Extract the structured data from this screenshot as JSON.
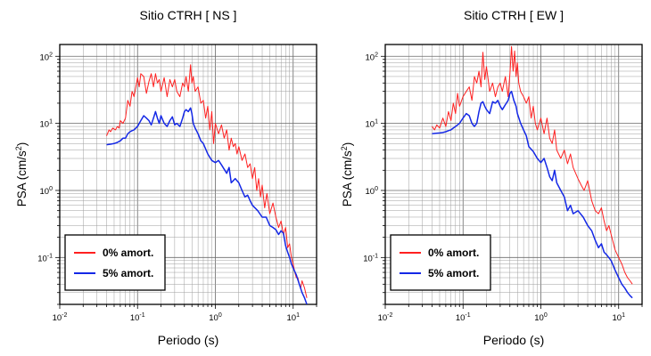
{
  "chart_data": [
    {
      "type": "line",
      "title": "Sitio CTRH [ NS ]",
      "xlabel": "Periodo (s)",
      "ylabel": "PSA (cm/s",
      "ylabel_sup": "2",
      "xscale": "log",
      "yscale": "log",
      "xlim": [
        0.01,
        20
      ],
      "ylim": [
        0.02,
        150
      ],
      "grid": true,
      "legend_position": "bottom-left",
      "x_ticks": [
        {
          "base": "10",
          "exp": "-2"
        },
        {
          "base": "10",
          "exp": "-1"
        },
        {
          "base": "10",
          "exp": "0"
        },
        {
          "base": "10",
          "exp": "1"
        }
      ],
      "y_ticks": [
        {
          "base": "10",
          "exp": "-1"
        },
        {
          "base": "10",
          "exp": "0"
        },
        {
          "base": "10",
          "exp": "1"
        },
        {
          "base": "10",
          "exp": "2"
        }
      ],
      "series": [
        {
          "name": "0% amort.",
          "color": "#ff2020",
          "x": [
            0.04,
            0.043,
            0.045,
            0.048,
            0.052,
            0.055,
            0.058,
            0.06,
            0.065,
            0.07,
            0.075,
            0.08,
            0.085,
            0.09,
            0.1,
            0.105,
            0.11,
            0.12,
            0.13,
            0.14,
            0.15,
            0.16,
            0.17,
            0.18,
            0.19,
            0.2,
            0.22,
            0.24,
            0.26,
            0.28,
            0.3,
            0.32,
            0.35,
            0.38,
            0.4,
            0.42,
            0.45,
            0.48,
            0.5,
            0.52,
            0.55,
            0.6,
            0.65,
            0.7,
            0.75,
            0.8,
            0.85,
            0.9,
            0.95,
            1.0,
            1.1,
            1.2,
            1.3,
            1.4,
            1.5,
            1.6,
            1.7,
            1.8,
            1.9,
            2.0,
            2.2,
            2.4,
            2.6,
            2.8,
            3.0,
            3.2,
            3.4,
            3.6,
            3.8,
            4.0,
            4.3,
            4.6,
            5.0,
            5.5,
            6.0,
            6.5,
            7.0,
            7.5,
            8.0,
            8.5,
            9.0,
            9.5,
            10.0,
            10.5,
            11.0,
            11.5,
            12.0,
            12.5,
            13.0,
            14.0,
            15.0
          ],
          "values": [
            6.5,
            8,
            7.5,
            8.5,
            8,
            9,
            8.5,
            11,
            10,
            12,
            22,
            18,
            30,
            25,
            48,
            35,
            55,
            50,
            28,
            42,
            55,
            35,
            55,
            40,
            45,
            30,
            48,
            25,
            45,
            35,
            45,
            30,
            25,
            40,
            35,
            50,
            30,
            75,
            40,
            50,
            30,
            35,
            20,
            22,
            12,
            18,
            8,
            15,
            5,
            10,
            7,
            9.5,
            6,
            8,
            4,
            6,
            4.5,
            5,
            3.5,
            4.5,
            2.8,
            3.5,
            2.2,
            2.5,
            1.5,
            2.2,
            1.0,
            1.5,
            0.8,
            1.2,
            0.55,
            0.9,
            0.45,
            0.65,
            0.4,
            0.28,
            0.35,
            0.22,
            0.28,
            0.14,
            0.16,
            0.1,
            0.08,
            0.06,
            0.05,
            0.05,
            0.04,
            0.035,
            0.045,
            0.035,
            0.025
          ]
        },
        {
          "name": "5% amort.",
          "color": "#1428e6",
          "x": [
            0.04,
            0.045,
            0.05,
            0.055,
            0.06,
            0.065,
            0.07,
            0.075,
            0.08,
            0.085,
            0.09,
            0.095,
            0.1,
            0.11,
            0.12,
            0.13,
            0.14,
            0.15,
            0.16,
            0.17,
            0.18,
            0.19,
            0.2,
            0.22,
            0.24,
            0.26,
            0.28,
            0.3,
            0.32,
            0.35,
            0.38,
            0.4,
            0.42,
            0.45,
            0.48,
            0.5,
            0.52,
            0.55,
            0.6,
            0.65,
            0.7,
            0.8,
            0.9,
            1.0,
            1.1,
            1.2,
            1.4,
            1.5,
            1.6,
            1.8,
            2.0,
            2.2,
            2.4,
            2.6,
            2.8,
            3.0,
            3.5,
            4.0,
            4.5,
            5.0,
            5.5,
            6.0,
            6.5,
            7.0,
            7.5,
            8.0,
            8.5,
            9.0,
            9.5,
            10.0,
            11.0,
            12.0,
            13.0,
            14.0,
            15.0
          ],
          "values": [
            4.8,
            4.9,
            5.0,
            5.2,
            5.5,
            6.0,
            6.0,
            7.0,
            7.5,
            7.8,
            8.0,
            8.5,
            9.0,
            11,
            13,
            12,
            11,
            9.5,
            12,
            15,
            12,
            10,
            13,
            10,
            9,
            11,
            12.5,
            9.5,
            10,
            9,
            12,
            15,
            16,
            15,
            17,
            14,
            10,
            8.5,
            7,
            5.5,
            5.0,
            3.5,
            2.8,
            2.6,
            2.8,
            2.4,
            1.8,
            2.2,
            1.3,
            1.5,
            1.3,
            1.0,
            0.8,
            0.85,
            0.7,
            0.6,
            0.5,
            0.4,
            0.4,
            0.3,
            0.28,
            0.26,
            0.22,
            0.25,
            0.23,
            0.15,
            0.12,
            0.1,
            0.08,
            0.07,
            0.055,
            0.04,
            0.03,
            0.025,
            0.02
          ]
        }
      ]
    },
    {
      "type": "line",
      "title": "Sitio CTRH [ EW ]",
      "xlabel": "Periodo (s)",
      "ylabel": "PSA (cm/s",
      "ylabel_sup": "2",
      "xscale": "log",
      "yscale": "log",
      "xlim": [
        0.01,
        20
      ],
      "ylim": [
        0.02,
        150
      ],
      "grid": true,
      "legend_position": "bottom-left",
      "x_ticks": [
        {
          "base": "10",
          "exp": "-2"
        },
        {
          "base": "10",
          "exp": "-1"
        },
        {
          "base": "10",
          "exp": "0"
        },
        {
          "base": "10",
          "exp": "1"
        }
      ],
      "y_ticks": [
        {
          "base": "10",
          "exp": "-1"
        },
        {
          "base": "10",
          "exp": "0"
        },
        {
          "base": "10",
          "exp": "1"
        },
        {
          "base": "10",
          "exp": "2"
        }
      ],
      "series": [
        {
          "name": "0% amort.",
          "color": "#ff2020",
          "x": [
            0.04,
            0.043,
            0.046,
            0.05,
            0.055,
            0.06,
            0.065,
            0.07,
            0.075,
            0.08,
            0.085,
            0.09,
            0.1,
            0.11,
            0.12,
            0.13,
            0.14,
            0.15,
            0.16,
            0.17,
            0.18,
            0.19,
            0.2,
            0.22,
            0.24,
            0.26,
            0.28,
            0.3,
            0.32,
            0.35,
            0.38,
            0.4,
            0.42,
            0.44,
            0.46,
            0.48,
            0.5,
            0.52,
            0.55,
            0.6,
            0.65,
            0.7,
            0.75,
            0.8,
            0.85,
            0.9,
            1.0,
            1.1,
            1.2,
            1.3,
            1.4,
            1.5,
            1.6,
            1.8,
            2.0,
            2.2,
            2.4,
            2.6,
            2.8,
            3.0,
            3.3,
            3.6,
            4.0,
            4.5,
            5.0,
            5.5,
            6.0,
            6.5,
            7.0,
            7.5,
            8.0,
            9.0,
            10.0,
            11.0,
            12.0,
            13.0,
            14.0,
            15.0
          ],
          "values": [
            9,
            8,
            9.5,
            8.5,
            12,
            9,
            15,
            11,
            20,
            14,
            28,
            18,
            25,
            30,
            35,
            22,
            50,
            40,
            60,
            35,
            115,
            45,
            70,
            30,
            40,
            25,
            35,
            40,
            30,
            50,
            25,
            55,
            140,
            60,
            120,
            50,
            80,
            40,
            30,
            25,
            20,
            25,
            12,
            18,
            10,
            8,
            12,
            7,
            12,
            6,
            5,
            8,
            4,
            3,
            4,
            2.5,
            3.5,
            2.2,
            1.8,
            1.5,
            1.2,
            1.0,
            1.4,
            0.7,
            0.5,
            0.45,
            0.55,
            0.35,
            0.25,
            0.3,
            0.22,
            0.13,
            0.1,
            0.08,
            0.06,
            0.05,
            0.045,
            0.04
          ]
        },
        {
          "name": "5% amort.",
          "color": "#1428e6",
          "x": [
            0.04,
            0.045,
            0.05,
            0.055,
            0.06,
            0.065,
            0.07,
            0.075,
            0.08,
            0.085,
            0.09,
            0.095,
            0.1,
            0.11,
            0.12,
            0.13,
            0.14,
            0.15,
            0.16,
            0.17,
            0.18,
            0.19,
            0.2,
            0.22,
            0.24,
            0.26,
            0.28,
            0.3,
            0.32,
            0.35,
            0.38,
            0.4,
            0.42,
            0.45,
            0.48,
            0.5,
            0.55,
            0.6,
            0.65,
            0.7,
            0.8,
            0.9,
            1.0,
            1.1,
            1.2,
            1.3,
            1.4,
            1.5,
            1.6,
            1.8,
            2.0,
            2.2,
            2.4,
            2.6,
            3.0,
            3.5,
            4.0,
            4.5,
            5.0,
            5.5,
            6.0,
            6.5,
            7.0,
            8.0,
            9.0,
            10.0,
            11.0,
            12.0,
            13.0,
            14.0,
            15.0
          ],
          "values": [
            7.0,
            7.1,
            7.2,
            7.3,
            7.5,
            7.8,
            8.0,
            8.5,
            9.0,
            9.5,
            10,
            11,
            12,
            14,
            13,
            10,
            9,
            10,
            15,
            20,
            21,
            18,
            16,
            14,
            21,
            20,
            22,
            18,
            16,
            19,
            22,
            28,
            30,
            22,
            18,
            14,
            10,
            8,
            6.5,
            4.5,
            3.8,
            3.0,
            2.6,
            3.0,
            2.2,
            1.6,
            1.4,
            2.0,
            1.3,
            1.0,
            0.8,
            0.5,
            0.6,
            0.45,
            0.5,
            0.4,
            0.3,
            0.25,
            0.18,
            0.14,
            0.16,
            0.12,
            0.11,
            0.09,
            0.065,
            0.05,
            0.04,
            0.035,
            0.03,
            0.027,
            0.025
          ]
        }
      ]
    }
  ]
}
